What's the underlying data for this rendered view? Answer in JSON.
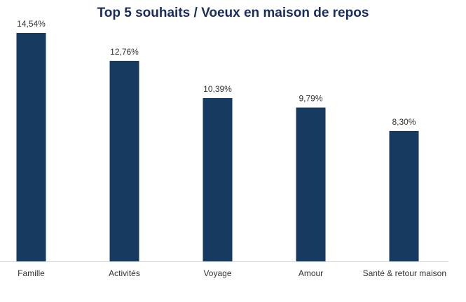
{
  "chart_data": {
    "type": "bar",
    "title": "Top 5 souhaits / Voeux en maison de repos",
    "categories": [
      "Famille",
      "Activités",
      "Voyage",
      "Amour",
      "Santé & retour maison"
    ],
    "values": [
      14.54,
      12.76,
      10.39,
      9.79,
      8.3
    ],
    "value_labels": [
      "14,54%",
      "12,76%",
      "10,39%",
      "9,79%",
      "8,30%"
    ],
    "xlabel": "",
    "ylabel": "",
    "ylim": [
      0,
      14.54
    ],
    "grid": false,
    "legend": "none",
    "bar_color": "#173a61",
    "axis_color": "#d9d9d9"
  }
}
